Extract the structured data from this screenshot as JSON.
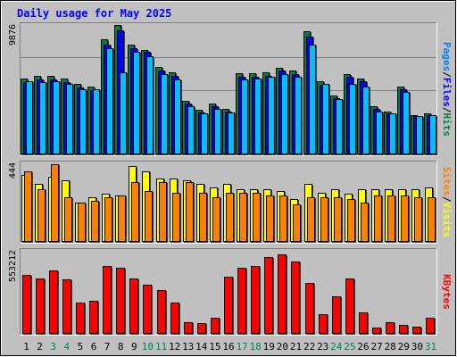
{
  "chart_data": {
    "type": "bar",
    "title": "Daily usage for May 2025",
    "categories": [
      "1",
      "2",
      "3",
      "4",
      "5",
      "6",
      "7",
      "8",
      "9",
      "10",
      "11",
      "12",
      "13",
      "14",
      "15",
      "16",
      "17",
      "18",
      "19",
      "20",
      "21",
      "22",
      "23",
      "24",
      "25",
      "26",
      "27",
      "28",
      "29",
      "30",
      "31"
    ],
    "weekend_days": [
      "3",
      "4",
      "10",
      "11",
      "17",
      "18",
      "24",
      "25",
      "31"
    ],
    "panels": [
      {
        "id": "hits",
        "max_label": "9876",
        "ylim": [
          0,
          9876
        ],
        "side_labels": [
          {
            "text": "Pages",
            "color": "#0080FF"
          },
          {
            "text": "Files",
            "color": "#0000FF"
          },
          {
            "text": "Hits",
            "color": "#008040"
          }
        ],
        "series": [
          {
            "name": "Hits",
            "color": "#008040",
            "values": [
              5800,
              6000,
              6000,
              5800,
              5400,
              5200,
              8800,
              9900,
              8400,
              8000,
              6700,
              6300,
              4100,
              3400,
              3900,
              3500,
              6200,
              6200,
              6300,
              6600,
              6400,
              9400,
              5600,
              4500,
              6100,
              5800,
              3700,
              3300,
              5200,
              3000,
              3100
            ]
          },
          {
            "name": "Files",
            "color": "#0000FF",
            "values": [
              5500,
              5700,
              5700,
              5500,
              5100,
              4900,
              8400,
              9500,
              8100,
              7800,
              6400,
              6000,
              3900,
              3200,
              3700,
              3300,
              5900,
              5900,
              6000,
              6400,
              6100,
              9000,
              5300,
              4300,
              5900,
              5600,
              3500,
              3100,
              5000,
              2900,
              3000
            ]
          },
          {
            "name": "Pages",
            "color": "#00BFFF",
            "values": [
              5600,
              5500,
              5600,
              5400,
              5000,
              5000,
              8100,
              6300,
              7800,
              7500,
              6100,
              5700,
              3700,
              3100,
              3500,
              3200,
              5700,
              5800,
              5900,
              6100,
              5900,
              8400,
              5400,
              4200,
              5400,
              5200,
              3300,
              3100,
              4800,
              2900,
              3000
            ]
          }
        ]
      },
      {
        "id": "visits",
        "max_label": "444",
        "ylim": [
          0,
          444
        ],
        "side_labels": [
          {
            "text": "Sites",
            "color": "#FF8000"
          },
          {
            "text": "Visits",
            "color": "#FFFF00"
          }
        ],
        "series": [
          {
            "name": "Visits",
            "color": "#FFFF00",
            "values": [
              380,
              330,
              370,
              350,
              220,
              250,
              270,
              260,
              430,
              400,
              360,
              360,
              350,
              330,
              310,
              330,
              300,
              300,
              300,
              290,
              240,
              330,
              280,
              300,
              270,
              300,
              300,
              300,
              300,
              300,
              310
            ]
          },
          {
            "name": "Sites",
            "color": "#FF8000",
            "values": [
              400,
              300,
              440,
              250,
              220,
              230,
              250,
              260,
              340,
              290,
              340,
              280,
              340,
              280,
              250,
              280,
              280,
              280,
              260,
              260,
              210,
              250,
              250,
              250,
              240,
              220,
              260,
              260,
              260,
              250,
              250
            ]
          }
        ]
      },
      {
        "id": "kbytes",
        "max_label": "553212",
        "ylim": [
          0,
          553212
        ],
        "side_labels": [
          {
            "text": "KBytes",
            "color": "#FF0000"
          }
        ],
        "series": [
          {
            "name": "KBytes",
            "color": "#FF0000",
            "values": [
              390000,
              370000,
              420000,
              360000,
              210000,
              220000,
              450000,
              440000,
              370000,
              330000,
              290000,
              210000,
              80000,
              70000,
              110000,
              380000,
              440000,
              450000,
              510000,
              530000,
              480000,
              340000,
              130000,
              250000,
              370000,
              140000,
              40000,
              75000,
              60000,
              50000,
              110000
            ]
          }
        ]
      }
    ]
  }
}
